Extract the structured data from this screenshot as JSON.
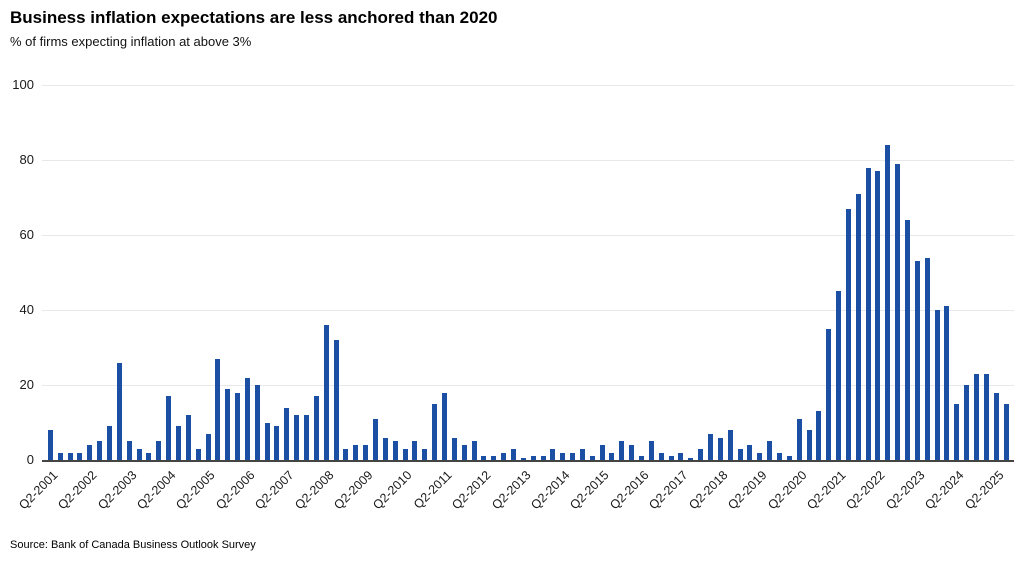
{
  "header": {
    "title": "Business inflation expectations are less anchored than 2020",
    "subtitle": "% of firms expecting inflation at above 3%"
  },
  "source": "Source: Bank of Canada Business Outlook Survey",
  "chart_data": {
    "type": "bar",
    "title": "Business inflation expectations are less anchored than 2020",
    "subtitle": "% of firms expecting inflation at above 3%",
    "xlabel": "",
    "ylabel": "",
    "ylim": [
      0,
      100
    ],
    "yticks": [
      0,
      20,
      40,
      60,
      80,
      100
    ],
    "grid": true,
    "legend": "none",
    "bar_color": "#1b4fa3",
    "axis_color": "#444444",
    "gridline_color": "#e8e8e8",
    "x_tick_every": 4,
    "categories": [
      "Q2-2001",
      "Q3-2001",
      "Q4-2001",
      "Q1-2002",
      "Q2-2002",
      "Q3-2002",
      "Q4-2002",
      "Q1-2003",
      "Q2-2003",
      "Q3-2003",
      "Q4-2003",
      "Q1-2004",
      "Q2-2004",
      "Q3-2004",
      "Q4-2004",
      "Q1-2005",
      "Q2-2005",
      "Q3-2005",
      "Q4-2005",
      "Q1-2006",
      "Q2-2006",
      "Q3-2006",
      "Q4-2006",
      "Q1-2007",
      "Q2-2007",
      "Q3-2007",
      "Q4-2007",
      "Q1-2008",
      "Q2-2008",
      "Q3-2008",
      "Q4-2008",
      "Q1-2009",
      "Q2-2009",
      "Q3-2009",
      "Q4-2009",
      "Q1-2010",
      "Q2-2010",
      "Q3-2010",
      "Q4-2010",
      "Q1-2011",
      "Q2-2011",
      "Q3-2011",
      "Q4-2011",
      "Q1-2012",
      "Q2-2012",
      "Q3-2012",
      "Q4-2012",
      "Q1-2013",
      "Q2-2013",
      "Q3-2013",
      "Q4-2013",
      "Q1-2014",
      "Q2-2014",
      "Q3-2014",
      "Q4-2014",
      "Q1-2015",
      "Q2-2015",
      "Q3-2015",
      "Q4-2015",
      "Q1-2016",
      "Q2-2016",
      "Q3-2016",
      "Q4-2016",
      "Q1-2017",
      "Q2-2017",
      "Q3-2017",
      "Q4-2017",
      "Q1-2018",
      "Q2-2018",
      "Q3-2018",
      "Q4-2018",
      "Q1-2019",
      "Q2-2019",
      "Q3-2019",
      "Q4-2019",
      "Q1-2020",
      "Q2-2020",
      "Q3-2020",
      "Q4-2020",
      "Q1-2021",
      "Q2-2021",
      "Q3-2021",
      "Q4-2021",
      "Q1-2022",
      "Q2-2022",
      "Q3-2022",
      "Q4-2022",
      "Q1-2023",
      "Q2-2023",
      "Q3-2023",
      "Q4-2023",
      "Q1-2024",
      "Q2-2024",
      "Q3-2024",
      "Q4-2024",
      "Q1-2025",
      "Q2-2025",
      "Q3-2025"
    ],
    "values": [
      8,
      2,
      2,
      2,
      4,
      5,
      9,
      26,
      5,
      3,
      2,
      5,
      17,
      9,
      12,
      3,
      7,
      27,
      19,
      18,
      22,
      20,
      10,
      9,
      14,
      12,
      12,
      17,
      36,
      32,
      3,
      4,
      4,
      11,
      6,
      5,
      3,
      5,
      3,
      15,
      18,
      6,
      4,
      5,
      1,
      1,
      2,
      3,
      0.5,
      1,
      1,
      3,
      2,
      2,
      3,
      1,
      4,
      2,
      5,
      4,
      1,
      5,
      2,
      1,
      2,
      0.5,
      3,
      7,
      6,
      8,
      3,
      4,
      2,
      5,
      2,
      1,
      11,
      8,
      13,
      35,
      45,
      67,
      71,
      78,
      77,
      84,
      79,
      64,
      53,
      54,
      40,
      41,
      15,
      20,
      23,
      23,
      18,
      15
    ]
  }
}
